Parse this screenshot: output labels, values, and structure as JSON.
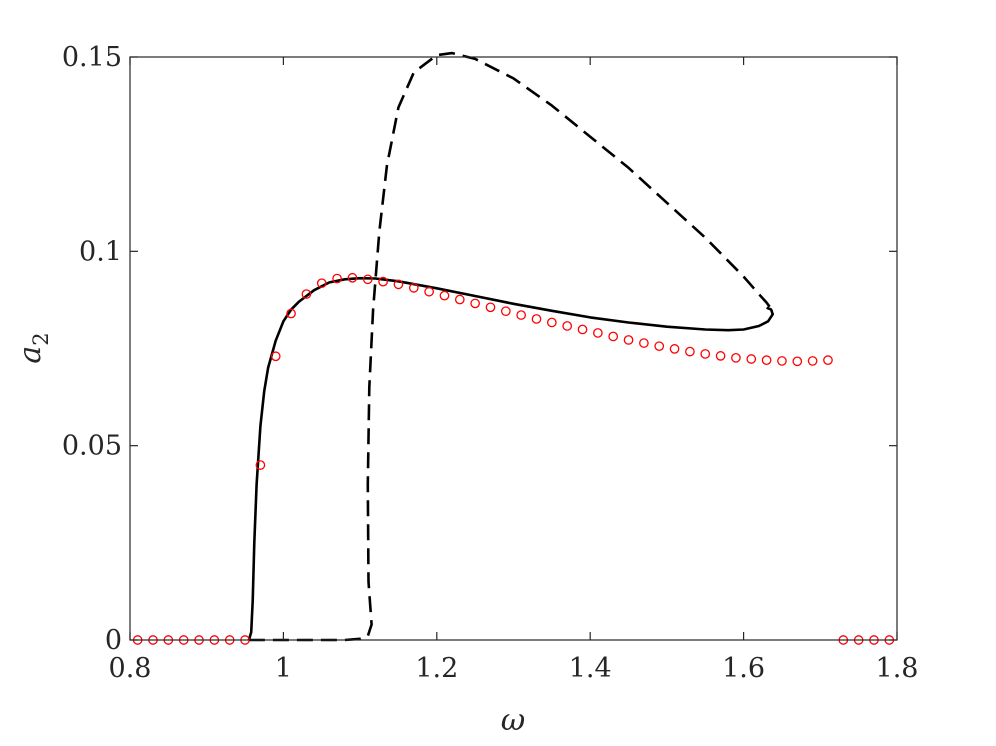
{
  "chart_data": {
    "type": "line",
    "title": "",
    "xlabel": "ω",
    "ylabel": "a",
    "ylabel_subscript": "2",
    "xlim": [
      0.8,
      1.8
    ],
    "ylim": [
      0,
      0.15
    ],
    "xticks": [
      0.8,
      1.0,
      1.2,
      1.4,
      1.6,
      1.8
    ],
    "xtick_labels": [
      "0.8",
      "1",
      "1.2",
      "1.4",
      "1.6",
      "1.8"
    ],
    "yticks": [
      0,
      0.05,
      0.1,
      0.15
    ],
    "ytick_labels": [
      "0",
      "0.05",
      "0.1",
      "0.15"
    ],
    "grid": false,
    "legend": "none",
    "series": [
      {
        "style": "solid",
        "color": "#000000",
        "x": [
          0.955,
          0.958,
          0.96,
          0.962,
          0.965,
          0.97,
          0.975,
          0.98,
          0.99,
          1.0,
          1.01,
          1.02,
          1.04,
          1.06,
          1.08,
          1.1,
          1.12,
          1.15,
          1.2,
          1.25,
          1.3,
          1.35,
          1.4,
          1.45,
          1.5,
          1.55,
          1.58,
          1.6,
          1.62,
          1.632,
          1.638,
          1.636,
          1.63
        ],
        "y": [
          0.0,
          0.002,
          0.01,
          0.025,
          0.04,
          0.055,
          0.064,
          0.07,
          0.077,
          0.082,
          0.085,
          0.087,
          0.09,
          0.092,
          0.0928,
          0.0931,
          0.093,
          0.0923,
          0.0905,
          0.0885,
          0.0865,
          0.0847,
          0.083,
          0.0817,
          0.0806,
          0.0799,
          0.0797,
          0.0799,
          0.0808,
          0.082,
          0.0838,
          0.085,
          0.0855
        ]
      },
      {
        "style": "dashed",
        "color": "#000000",
        "x": [
          0.955,
          1.0,
          1.05,
          1.08,
          1.1,
          1.11,
          1.115,
          1.111,
          1.11,
          1.112,
          1.117,
          1.125,
          1.135,
          1.15,
          1.17,
          1.2,
          1.22,
          1.25,
          1.3,
          1.35,
          1.4,
          1.45,
          1.5,
          1.55,
          1.6,
          1.62,
          1.63,
          1.636,
          1.638
        ],
        "y": [
          0.0,
          0.0,
          0.0,
          0.0,
          0.0003,
          0.001,
          0.004,
          0.015,
          0.04,
          0.065,
          0.085,
          0.105,
          0.122,
          0.137,
          0.146,
          0.1505,
          0.151,
          0.1495,
          0.1445,
          0.1375,
          0.1295,
          0.1215,
          0.1125,
          0.1035,
          0.0935,
          0.089,
          0.0868,
          0.0852,
          0.0838
        ]
      },
      {
        "style": "markers",
        "marker": "circle-open",
        "color": "#ff0000",
        "x": [
          0.81,
          0.83,
          0.85,
          0.87,
          0.89,
          0.91,
          0.93,
          0.95,
          0.97,
          0.99,
          1.01,
          1.03,
          1.05,
          1.07,
          1.09,
          1.11,
          1.13,
          1.15,
          1.17,
          1.19,
          1.21,
          1.23,
          1.25,
          1.27,
          1.29,
          1.31,
          1.33,
          1.35,
          1.37,
          1.39,
          1.41,
          1.43,
          1.45,
          1.47,
          1.49,
          1.51,
          1.53,
          1.55,
          1.57,
          1.59,
          1.61,
          1.63,
          1.65,
          1.67,
          1.69,
          1.71,
          1.73,
          1.75,
          1.77,
          1.79
        ],
        "y": [
          0,
          0,
          0,
          0,
          0,
          0,
          0,
          0,
          0.045,
          0.073,
          0.084,
          0.089,
          0.0918,
          0.093,
          0.0932,
          0.0928,
          0.0922,
          0.0915,
          0.0906,
          0.0896,
          0.0886,
          0.0876,
          0.0866,
          0.0856,
          0.0846,
          0.0836,
          0.0826,
          0.0817,
          0.0808,
          0.0799,
          0.079,
          0.0781,
          0.0772,
          0.0764,
          0.0756,
          0.0749,
          0.0742,
          0.0736,
          0.0731,
          0.0726,
          0.0723,
          0.072,
          0.0718,
          0.0717,
          0.0718,
          0.072,
          0,
          0,
          0,
          0
        ]
      }
    ]
  }
}
